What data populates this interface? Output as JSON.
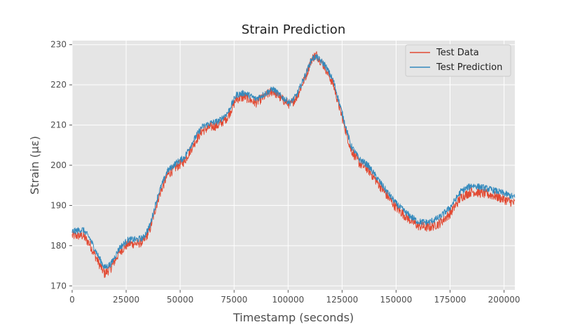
{
  "chart_data": {
    "type": "line",
    "title": "Strain Prediction",
    "xlabel": "Timestamp (seconds)",
    "ylabel": "Strain (με)",
    "xlim": [
      0,
      205000
    ],
    "ylim": [
      169,
      231
    ],
    "xticks": [
      0,
      25000,
      50000,
      75000,
      100000,
      125000,
      150000,
      175000,
      200000
    ],
    "yticks": [
      170,
      180,
      190,
      200,
      210,
      220,
      230
    ],
    "grid": true,
    "legend_position": "top-right",
    "series": [
      {
        "name": "Test Data",
        "color": "#E24A33",
        "noise": 1.2,
        "x": [
          0,
          5000,
          8000,
          12000,
          15000,
          18000,
          22000,
          26000,
          30000,
          33000,
          36000,
          40000,
          44000,
          48000,
          52000,
          56000,
          60000,
          64000,
          68000,
          72000,
          76000,
          80000,
          85000,
          90000,
          93000,
          97000,
          101000,
          104000,
          108000,
          111000,
          113000,
          117000,
          121000,
          125000,
          129000,
          133000,
          137000,
          141000,
          145000,
          150000,
          155000,
          160000,
          165000,
          170000,
          175000,
          180000,
          185000,
          190000,
          195000,
          200000,
          205000
        ],
        "values": [
          182.5,
          182.5,
          180.5,
          176.0,
          173.0,
          174.5,
          178.5,
          180.5,
          180.5,
          181.0,
          184.0,
          192.0,
          197.5,
          199.5,
          201.0,
          205.0,
          208.5,
          209.5,
          210.0,
          212.0,
          216.5,
          217.0,
          215.5,
          217.5,
          218.5,
          216.5,
          215.0,
          217.0,
          222.0,
          226.5,
          227.5,
          224.5,
          220.0,
          212.0,
          204.0,
          200.5,
          199.0,
          196.0,
          193.0,
          189.5,
          187.0,
          185.0,
          184.5,
          185.5,
          188.0,
          192.0,
          193.5,
          193.0,
          192.5,
          191.5,
          190.5
        ]
      },
      {
        "name": "Test Prediction",
        "color": "#348ABD",
        "noise": 0.8,
        "x": [
          0,
          5000,
          8000,
          12000,
          15000,
          18000,
          22000,
          26000,
          30000,
          33000,
          36000,
          40000,
          44000,
          48000,
          52000,
          56000,
          60000,
          64000,
          68000,
          72000,
          76000,
          80000,
          85000,
          90000,
          93000,
          97000,
          101000,
          104000,
          108000,
          111000,
          113000,
          117000,
          121000,
          125000,
          129000,
          133000,
          137000,
          141000,
          145000,
          150000,
          155000,
          160000,
          165000,
          170000,
          175000,
          180000,
          185000,
          190000,
          195000,
          200000,
          205000
        ],
        "values": [
          183.5,
          184.0,
          182.0,
          177.5,
          174.5,
          175.5,
          179.5,
          181.5,
          181.5,
          182.0,
          185.0,
          193.0,
          198.5,
          200.5,
          202.0,
          206.0,
          209.5,
          210.5,
          211.0,
          213.0,
          217.5,
          218.0,
          216.5,
          218.0,
          219.0,
          217.0,
          215.5,
          217.5,
          222.5,
          226.5,
          227.0,
          225.0,
          221.0,
          213.0,
          205.0,
          201.5,
          200.0,
          197.0,
          194.0,
          190.5,
          188.0,
          186.0,
          185.8,
          187.0,
          189.5,
          193.5,
          195.0,
          194.5,
          193.8,
          193.0,
          192.0
        ]
      }
    ]
  }
}
